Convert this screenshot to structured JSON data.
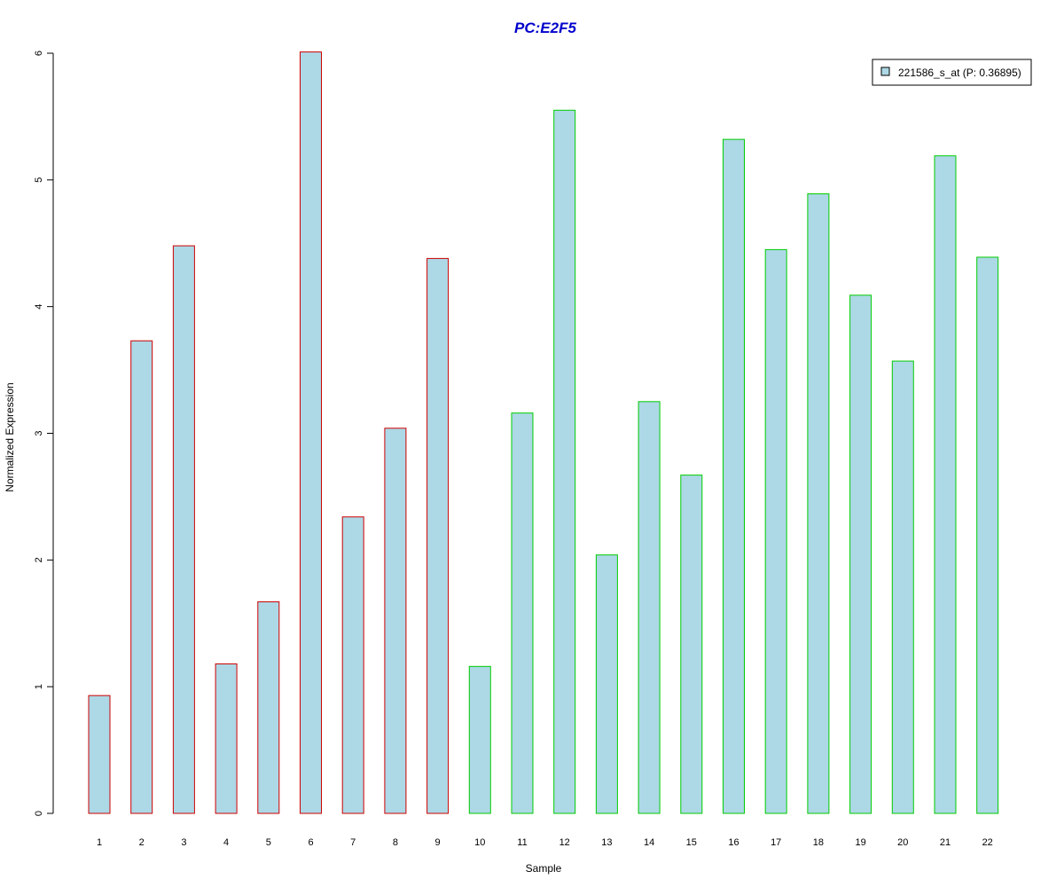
{
  "chart_data": {
    "type": "bar",
    "title": "PC:E2F5",
    "xlabel": "Sample",
    "ylabel": "Normalized Expression",
    "ylim": [
      0,
      6
    ],
    "yticks": [
      0,
      1,
      2,
      3,
      4,
      5,
      6
    ],
    "categories": [
      "1",
      "2",
      "3",
      "4",
      "5",
      "6",
      "7",
      "8",
      "9",
      "10",
      "11",
      "12",
      "13",
      "14",
      "15",
      "16",
      "17",
      "18",
      "19",
      "20",
      "21",
      "22"
    ],
    "series": [
      {
        "name": "221586_s_at (P: 0.36895)",
        "values": [
          0.93,
          3.73,
          4.48,
          1.18,
          1.67,
          6.01,
          2.34,
          3.04,
          4.38,
          1.16,
          3.16,
          5.55,
          2.04,
          3.25,
          2.67,
          5.32,
          4.45,
          4.89,
          4.09,
          3.57,
          5.19,
          4.39
        ]
      }
    ],
    "bar_groups": [
      "A",
      "A",
      "A",
      "A",
      "A",
      "A",
      "A",
      "A",
      "A",
      "B",
      "B",
      "B",
      "B",
      "B",
      "B",
      "B",
      "B",
      "B",
      "B",
      "B",
      "B",
      "B"
    ],
    "legend": {
      "label": "221586_s_at (P: 0.36895)",
      "position": "top-right"
    },
    "grid": false
  },
  "colors": {
    "title": "#0000CC",
    "bar_fill": "#ADD8E6",
    "group_A_border": "#CC0000",
    "group_B_border": "#00CC00",
    "axis": "#000000"
  }
}
